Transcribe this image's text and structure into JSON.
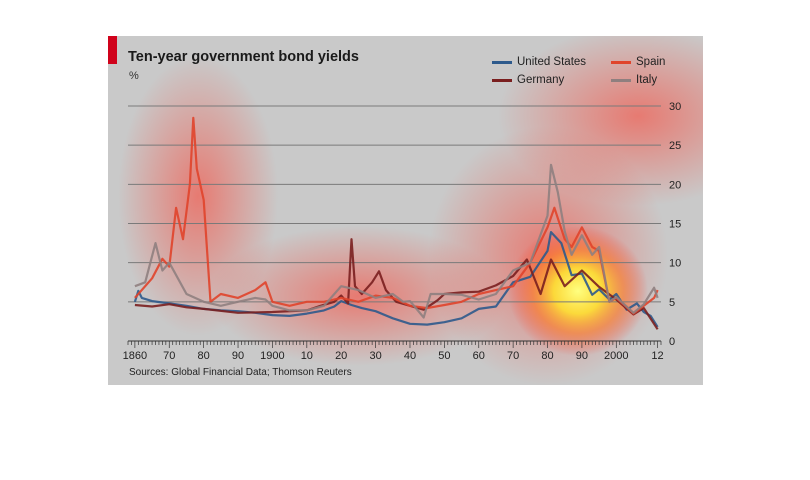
{
  "chart_data": {
    "type": "line",
    "title": "Ten-year government bond yields",
    "ylabel": "%",
    "source": "Sources: Global Financial Data; Thomson Reuters",
    "ylim": [
      0,
      30
    ],
    "xlim": [
      1858,
      2013
    ],
    "yticks": [
      0,
      5,
      10,
      15,
      20,
      25,
      30
    ],
    "xticks": [
      {
        "year": 1860,
        "label": "1860"
      },
      {
        "year": 1870,
        "label": "70"
      },
      {
        "year": 1880,
        "label": "80"
      },
      {
        "year": 1890,
        "label": "90"
      },
      {
        "year": 1900,
        "label": "1900"
      },
      {
        "year": 1910,
        "label": "10"
      },
      {
        "year": 1920,
        "label": "20"
      },
      {
        "year": 1930,
        "label": "30"
      },
      {
        "year": 1940,
        "label": "40"
      },
      {
        "year": 1950,
        "label": "50"
      },
      {
        "year": 1960,
        "label": "60"
      },
      {
        "year": 1970,
        "label": "70"
      },
      {
        "year": 1980,
        "label": "80"
      },
      {
        "year": 1990,
        "label": "90"
      },
      {
        "year": 2000,
        "label": "2000"
      },
      {
        "year": 2012,
        "label": "12"
      }
    ],
    "grid": true,
    "legend_position": "top-right",
    "series": [
      {
        "name": "United States",
        "color": "#2d5a8c",
        "points": [
          [
            1860,
            5
          ],
          [
            1861,
            6.4
          ],
          [
            1862,
            5.5
          ],
          [
            1865,
            5.1
          ],
          [
            1870,
            4.8
          ],
          [
            1875,
            4.5
          ],
          [
            1880,
            4.1
          ],
          [
            1885,
            3.9
          ],
          [
            1890,
            3.8
          ],
          [
            1895,
            3.6
          ],
          [
            1900,
            3.3
          ],
          [
            1905,
            3.2
          ],
          [
            1910,
            3.5
          ],
          [
            1915,
            3.9
          ],
          [
            1918,
            4.4
          ],
          [
            1920,
            5.1
          ],
          [
            1923,
            4.6
          ],
          [
            1926,
            4.2
          ],
          [
            1930,
            3.8
          ],
          [
            1935,
            2.9
          ],
          [
            1940,
            2.2
          ],
          [
            1945,
            2.1
          ],
          [
            1950,
            2.4
          ],
          [
            1955,
            2.9
          ],
          [
            1960,
            4.1
          ],
          [
            1965,
            4.4
          ],
          [
            1970,
            7.5
          ],
          [
            1975,
            8.2
          ],
          [
            1980,
            11.5
          ],
          [
            1981,
            13.9
          ],
          [
            1984,
            12.5
          ],
          [
            1987,
            8.4
          ],
          [
            1990,
            8.6
          ],
          [
            1993,
            5.9
          ],
          [
            1995,
            6.6
          ],
          [
            1998,
            5.3
          ],
          [
            2000,
            6
          ],
          [
            2003,
            4
          ],
          [
            2006,
            4.8
          ],
          [
            2008,
            3.7
          ],
          [
            2010,
            3.2
          ],
          [
            2012,
            1.8
          ]
        ]
      },
      {
        "name": "Germany",
        "color": "#7a1f1f",
        "points": [
          [
            1860,
            4.6
          ],
          [
            1865,
            4.4
          ],
          [
            1870,
            4.7
          ],
          [
            1875,
            4.3
          ],
          [
            1880,
            4.1
          ],
          [
            1890,
            3.6
          ],
          [
            1900,
            3.7
          ],
          [
            1910,
            3.9
          ],
          [
            1914,
            4.5
          ],
          [
            1918,
            5
          ],
          [
            1920,
            5.8
          ],
          [
            1922,
            4.8
          ],
          [
            1923,
            13
          ],
          [
            1924,
            7
          ],
          [
            1926,
            6
          ],
          [
            1929,
            7.5
          ],
          [
            1931,
            8.9
          ],
          [
            1933,
            6.5
          ],
          [
            1936,
            5
          ],
          [
            1940,
            4.5
          ],
          [
            1944,
            4
          ],
          [
            1948,
            5.2
          ],
          [
            1950,
            6
          ],
          [
            1955,
            6.2
          ],
          [
            1960,
            6.3
          ],
          [
            1965,
            7.1
          ],
          [
            1970,
            8.3
          ],
          [
            1974,
            10.4
          ],
          [
            1978,
            6
          ],
          [
            1981,
            10.4
          ],
          [
            1985,
            7
          ],
          [
            1990,
            9
          ],
          [
            1995,
            6.9
          ],
          [
            2000,
            5.3
          ],
          [
            2005,
            3.4
          ],
          [
            2008,
            4.2
          ],
          [
            2012,
            1.5
          ]
        ]
      },
      {
        "name": "Spain",
        "color": "#e0442b",
        "points": [
          [
            1860,
            5.5
          ],
          [
            1865,
            8
          ],
          [
            1868,
            10.5
          ],
          [
            1870,
            9.5
          ],
          [
            1872,
            17
          ],
          [
            1874,
            13
          ],
          [
            1876,
            20
          ],
          [
            1877,
            28.5
          ],
          [
            1878,
            22
          ],
          [
            1880,
            18
          ],
          [
            1882,
            5
          ],
          [
            1885,
            6
          ],
          [
            1890,
            5.5
          ],
          [
            1895,
            6.5
          ],
          [
            1898,
            7.5
          ],
          [
            1900,
            5
          ],
          [
            1905,
            4.5
          ],
          [
            1910,
            5
          ],
          [
            1915,
            5
          ],
          [
            1920,
            5.5
          ],
          [
            1925,
            5
          ],
          [
            1930,
            5.8
          ],
          [
            1935,
            5.5
          ],
          [
            1940,
            4.5
          ],
          [
            1945,
            4.2
          ],
          [
            1950,
            4.6
          ],
          [
            1955,
            5
          ],
          [
            1960,
            6
          ],
          [
            1965,
            6.5
          ],
          [
            1970,
            7
          ],
          [
            1975,
            10
          ],
          [
            1980,
            14.5
          ],
          [
            1982,
            17
          ],
          [
            1985,
            13
          ],
          [
            1987,
            12
          ],
          [
            1990,
            14.5
          ],
          [
            1993,
            12
          ],
          [
            1995,
            11.5
          ],
          [
            1998,
            5
          ],
          [
            2000,
            5.5
          ],
          [
            2005,
            3.5
          ],
          [
            2008,
            4.5
          ],
          [
            2011,
            5.5
          ],
          [
            2012,
            6.5
          ]
        ]
      },
      {
        "name": "Italy",
        "color": "#8f7f7f",
        "points": [
          [
            1860,
            7
          ],
          [
            1863,
            7.5
          ],
          [
            1866,
            12.5
          ],
          [
            1868,
            9
          ],
          [
            1870,
            10
          ],
          [
            1875,
            6
          ],
          [
            1880,
            5
          ],
          [
            1885,
            4.5
          ],
          [
            1890,
            5
          ],
          [
            1895,
            5.5
          ],
          [
            1898,
            5.3
          ],
          [
            1900,
            4.5
          ],
          [
            1905,
            3.9
          ],
          [
            1910,
            3.9
          ],
          [
            1915,
            4.5
          ],
          [
            1918,
            6
          ],
          [
            1920,
            7
          ],
          [
            1925,
            6.5
          ],
          [
            1930,
            5.5
          ],
          [
            1935,
            6
          ],
          [
            1938,
            5
          ],
          [
            1940,
            5.1
          ],
          [
            1944,
            3
          ],
          [
            1946,
            6
          ],
          [
            1950,
            6
          ],
          [
            1955,
            5.9
          ],
          [
            1960,
            5.3
          ],
          [
            1965,
            6
          ],
          [
            1970,
            9
          ],
          [
            1975,
            10
          ],
          [
            1980,
            16
          ],
          [
            1981,
            22.5
          ],
          [
            1983,
            19
          ],
          [
            1985,
            14
          ],
          [
            1987,
            11
          ],
          [
            1990,
            13.5
          ],
          [
            1993,
            11
          ],
          [
            1995,
            12
          ],
          [
            1998,
            5
          ],
          [
            2000,
            5.6
          ],
          [
            2005,
            3.6
          ],
          [
            2008,
            4.7
          ],
          [
            2011,
            6.8
          ],
          [
            2012,
            5.5
          ]
        ]
      }
    ]
  }
}
